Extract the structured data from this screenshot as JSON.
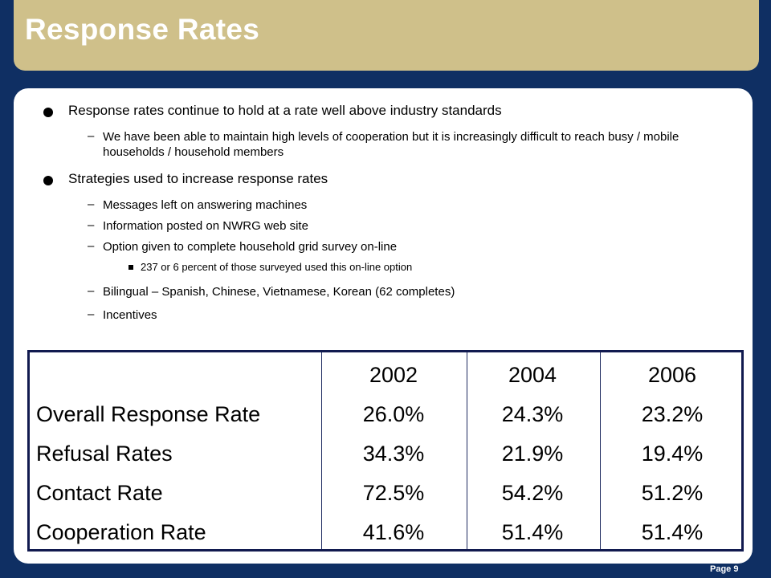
{
  "slide": {
    "title": "Response Rates",
    "page_label": "Page 9"
  },
  "bullets": {
    "item1": "Response rates continue to hold at a rate well above industry standards",
    "item1_sub1": "We have been able to maintain high levels of cooperation but it is increasingly difficult to reach busy / mobile households / household members",
    "item2": "Strategies used to increase response rates",
    "item2_sub1": "Messages left on answering machines",
    "item2_sub2": "Information posted on NWRG web site",
    "item2_sub3": "Option given to complete household grid survey on-line",
    "item2_sub3_sub1": "237 or 6 percent of those surveyed used this on-line option",
    "item2_sub4": "Bilingual – Spanish, Chinese, Vietnamese, Korean (62 completes)",
    "item2_sub5": "Incentives",
    "dash": "–"
  },
  "table": {
    "years": [
      "2002",
      "2004",
      "2006"
    ],
    "rows": [
      {
        "label": "Overall Response Rate",
        "values": [
          "26.0%",
          "24.3%",
          "23.2%"
        ]
      },
      {
        "label": "Refusal Rates",
        "values": [
          "34.3%",
          "21.9%",
          "19.4%"
        ]
      },
      {
        "label": "Contact Rate",
        "values": [
          "72.5%",
          "54.2%",
          "51.2%"
        ]
      },
      {
        "label": "Cooperation Rate",
        "values": [
          "41.6%",
          "51.4%",
          "51.4%"
        ]
      }
    ]
  },
  "colors": {
    "background": "#0f2f63",
    "title_bar": "#cfc08a",
    "table_border": "#111a4f"
  }
}
